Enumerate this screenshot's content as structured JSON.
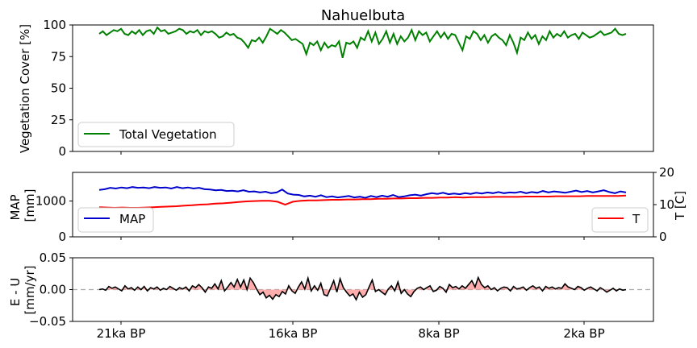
{
  "chart_data": [
    {
      "type": "line",
      "title": "Nahuelbuta",
      "ylabel": "Vegetation Cover [%]",
      "ylim": [
        0,
        100
      ],
      "yticks": [
        0,
        25,
        50,
        75,
        100
      ],
      "x_tick_labels": [
        "21ka BP",
        "16ka BP",
        "8ka BP",
        "2ka BP"
      ],
      "legend": {
        "position": "lower-left",
        "entries": [
          "Total Vegetation"
        ]
      },
      "series": [
        {
          "name": "Total Vegetation",
          "color": "#008000",
          "values": [
            93,
            95,
            92,
            94,
            96,
            95,
            97,
            93,
            92,
            95,
            93,
            96,
            92,
            95,
            96,
            93,
            98,
            95,
            96,
            93,
            94,
            95,
            97,
            96,
            93,
            95,
            94,
            96,
            92,
            95,
            94,
            95,
            93,
            90,
            91,
            94,
            92,
            93,
            90,
            89,
            86,
            82,
            88,
            87,
            90,
            86,
            91,
            97,
            95,
            93,
            96,
            94,
            91,
            88,
            89,
            87,
            85,
            77,
            86,
            84,
            87,
            80,
            86,
            82,
            84,
            83,
            87,
            74,
            86,
            85,
            87,
            82,
            90,
            88,
            95,
            87,
            94,
            85,
            89,
            95,
            86,
            93,
            85,
            91,
            87,
            90,
            96,
            88,
            95,
            92,
            94,
            87,
            91,
            95,
            90,
            94,
            89,
            93,
            92,
            86,
            80,
            91,
            89,
            95,
            93,
            88,
            92,
            86,
            91,
            93,
            90,
            88,
            84,
            92,
            86,
            78,
            90,
            88,
            94,
            89,
            92,
            85,
            91,
            88,
            95,
            90,
            93,
            91,
            95,
            90,
            92,
            93,
            89,
            94,
            92,
            90,
            91,
            93,
            95,
            92,
            93,
            94,
            97,
            93,
            92,
            93
          ]
        }
      ]
    },
    {
      "type": "line",
      "ylabel": "MAP\n[mm]",
      "ylim": [
        0,
        1800
      ],
      "yticks": [
        0,
        1000
      ],
      "y2label": "T [C]",
      "y2lim": [
        0,
        20
      ],
      "y2ticks": [
        0,
        10,
        20
      ],
      "legend": [
        {
          "position": "lower-left",
          "entries": [
            "MAP"
          ]
        },
        {
          "position": "lower-right",
          "entries": [
            "T"
          ]
        }
      ],
      "series": [
        {
          "name": "MAP",
          "axis": "left",
          "color": "#0000cc",
          "values": [
            1310,
            1330,
            1370,
            1350,
            1380,
            1360,
            1390,
            1370,
            1380,
            1360,
            1390,
            1370,
            1380,
            1350,
            1390,
            1360,
            1380,
            1350,
            1370,
            1330,
            1320,
            1300,
            1310,
            1280,
            1290,
            1270,
            1300,
            1260,
            1270,
            1240,
            1260,
            1220,
            1240,
            1320,
            1210,
            1180,
            1170,
            1130,
            1150,
            1120,
            1160,
            1110,
            1130,
            1100,
            1120,
            1140,
            1100,
            1120,
            1090,
            1140,
            1110,
            1150,
            1120,
            1170,
            1110,
            1130,
            1160,
            1180,
            1150,
            1190,
            1220,
            1200,
            1230,
            1190,
            1210,
            1190,
            1220,
            1200,
            1230,
            1210,
            1240,
            1220,
            1250,
            1220,
            1240,
            1230,
            1260,
            1220,
            1250,
            1230,
            1280,
            1240,
            1270,
            1250,
            1230,
            1260,
            1290,
            1250,
            1280,
            1240,
            1270,
            1300,
            1250,
            1220,
            1270,
            1240
          ]
        },
        {
          "name": "T",
          "axis": "right",
          "color": "#ff0000",
          "values": [
            9.2,
            9.1,
            9.0,
            9.1,
            9.0,
            9.0,
            9.1,
            9.2,
            9.3,
            9.4,
            9.5,
            9.7,
            9.8,
            10.0,
            10.1,
            10.3,
            10.4,
            10.6,
            10.8,
            11.0,
            11.1,
            11.2,
            11.2,
            10.9,
            10.0,
            10.9,
            11.2,
            11.3,
            11.3,
            11.4,
            11.5,
            11.5,
            11.6,
            11.6,
            11.7,
            11.7,
            11.8,
            11.8,
            11.9,
            11.9,
            12.0,
            12.0,
            12.1,
            12.1,
            12.2,
            12.2,
            12.3,
            12.2,
            12.3,
            12.3,
            12.3,
            12.4,
            12.4,
            12.4,
            12.4,
            12.5,
            12.5,
            12.5,
            12.5,
            12.6,
            12.6,
            12.6,
            12.6,
            12.7,
            12.7,
            12.7,
            12.7,
            12.7,
            12.8
          ]
        }
      ]
    },
    {
      "type": "area",
      "ylabel": "E - U\n[mm/yr]",
      "ylim": [
        -0.05,
        0.05
      ],
      "yticks": [
        -0.05,
        0.0,
        0.05
      ],
      "yticklabels": [
        "−0.05",
        "0.00",
        "0.05"
      ],
      "x_tick_labels": [
        "21ka BP",
        "16ka BP",
        "8ka BP",
        "2ka BP"
      ],
      "reference_line": 0,
      "series": [
        {
          "name": "E - U",
          "color": "#000000",
          "fill_color": "#ff9999",
          "values": [
            0.0,
            0.001,
            -0.001,
            0.005,
            0.002,
            0.004,
            0.001,
            -0.002,
            0.006,
            0.001,
            0.003,
            -0.001,
            0.004,
            0.0,
            0.005,
            -0.002,
            0.003,
            0.001,
            0.004,
            -0.001,
            0.002,
            0.0,
            0.005,
            0.002,
            -0.001,
            0.003,
            0.001,
            0.004,
            -0.002,
            0.006,
            0.003,
            0.008,
            0.003,
            -0.004,
            0.004,
            0.002,
            0.009,
            0.001,
            0.014,
            -0.002,
            0.004,
            0.011,
            0.004,
            0.016,
            0.004,
            0.015,
            0.0,
            0.018,
            0.011,
            0.001,
            -0.008,
            -0.004,
            -0.013,
            -0.009,
            -0.015,
            -0.008,
            -0.011,
            -0.003,
            -0.007,
            0.006,
            -0.002,
            -0.006,
            0.004,
            0.012,
            0.001,
            0.018,
            -0.002,
            0.006,
            -0.001,
            0.01,
            -0.008,
            -0.01,
            0.002,
            0.014,
            -0.004,
            0.017,
            0.003,
            -0.004,
            -0.01,
            -0.007,
            -0.016,
            -0.004,
            -0.012,
            -0.008,
            0.004,
            0.015,
            -0.003,
            0.0,
            -0.004,
            -0.008,
            0.001,
            0.006,
            -0.002,
            0.012,
            -0.006,
            0.0,
            -0.007,
            -0.011,
            -0.003,
            0.002,
            0.004,
            0.0,
            0.003,
            0.006,
            -0.003,
            -0.001,
            0.005,
            0.002,
            -0.004,
            0.008,
            0.003,
            0.005,
            0.001,
            0.006,
            0.002,
            0.008,
            0.014,
            0.004,
            0.019,
            0.008,
            0.003,
            0.006,
            0.0,
            0.003,
            -0.002,
            0.002,
            0.004,
            0.003,
            -0.002,
            0.005,
            0.001,
            0.002,
            0.004,
            -0.001,
            0.003,
            0.006,
            0.002,
            0.004,
            -0.002,
            0.005,
            0.002,
            0.004,
            0.001,
            0.003,
            0.002,
            0.009,
            0.004,
            0.002,
            0.0,
            0.005,
            0.003,
            -0.001,
            0.002,
            0.004,
            0.001,
            -0.002,
            0.003,
            0.0,
            -0.004,
            -0.001,
            0.002,
            -0.002,
            0.001,
            -0.001,
            0.0
          ]
        }
      ]
    }
  ]
}
